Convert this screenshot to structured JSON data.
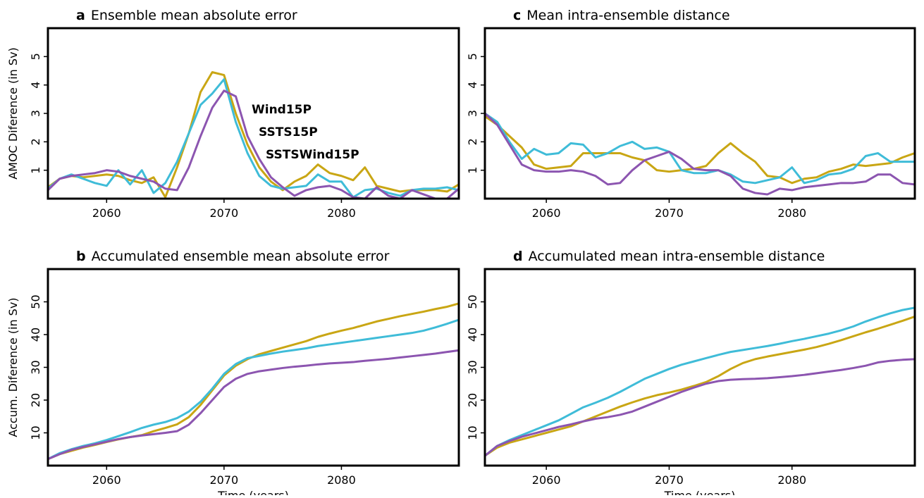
{
  "chart_data": [
    {
      "type": "line",
      "label": "a",
      "title": "Ensemble mean absolute error",
      "ylabel": "AMOC Diference (in Sv)",
      "legend": true,
      "x": [
        2055,
        2056,
        2057,
        2058,
        2059,
        2060,
        2061,
        2062,
        2063,
        2064,
        2065,
        2066,
        2067,
        2068,
        2069,
        2070,
        2071,
        2072,
        2073,
        2074,
        2075,
        2076,
        2077,
        2078,
        2079,
        2080,
        2081,
        2082,
        2083,
        2084,
        2085,
        2086,
        2087,
        2088,
        2089,
        2090
      ],
      "xlim": [
        2055,
        2090
      ],
      "xticks": [
        2060,
        2070,
        2080
      ],
      "ylim": [
        0,
        6
      ],
      "yticks": [
        1,
        2,
        3,
        4,
        5
      ],
      "series": [
        {
          "name": "Wind15P",
          "color": "#c9a614",
          "values": [
            0.4,
            0.7,
            0.8,
            0.75,
            0.8,
            0.85,
            0.8,
            0.65,
            0.55,
            0.75,
            0.05,
            1.1,
            2.3,
            3.75,
            4.45,
            4.35,
            3.0,
            1.9,
            1.1,
            0.6,
            0.3,
            0.6,
            0.8,
            1.2,
            0.9,
            0.8,
            0.65,
            1.1,
            0.45,
            0.35,
            0.25,
            0.3,
            0.3,
            0.3,
            0.25,
            0.5
          ]
        },
        {
          "name": "SSTS15P",
          "color": "#3fbcd8",
          "values": [
            0.35,
            0.7,
            0.85,
            0.7,
            0.55,
            0.45,
            1.0,
            0.5,
            1.0,
            0.2,
            0.55,
            1.3,
            2.3,
            3.3,
            3.7,
            4.2,
            2.7,
            1.6,
            0.8,
            0.45,
            0.35,
            0.4,
            0.45,
            0.85,
            0.6,
            0.6,
            0.05,
            0.3,
            0.35,
            0.2,
            0.1,
            0.3,
            0.35,
            0.35,
            0.4,
            0.3
          ]
        },
        {
          "name": "SSTSWind15P",
          "color": "#8c55b0",
          "values": [
            0.3,
            0.7,
            0.8,
            0.85,
            0.9,
            1.0,
            0.95,
            0.8,
            0.7,
            0.6,
            0.35,
            0.3,
            1.1,
            2.2,
            3.2,
            3.8,
            3.6,
            2.2,
            1.4,
            0.75,
            0.4,
            0.1,
            0.3,
            0.4,
            0.45,
            0.3,
            0.05,
            0.0,
            0.4,
            0.1,
            0.0,
            0.3,
            0.15,
            0.0,
            0.0,
            0.35
          ]
        }
      ]
    },
    {
      "type": "line",
      "label": "b",
      "title": "Accumulated ensemble mean absolute error",
      "ylabel": "Accum. Diference (in Sv)",
      "xlabel": "Time (years)",
      "x": [
        2055,
        2056,
        2057,
        2058,
        2059,
        2060,
        2061,
        2062,
        2063,
        2064,
        2065,
        2066,
        2067,
        2068,
        2069,
        2070,
        2071,
        2072,
        2073,
        2074,
        2075,
        2076,
        2077,
        2078,
        2079,
        2080,
        2081,
        2082,
        2083,
        2084,
        2085,
        2086,
        2087,
        2088,
        2089,
        2090
      ],
      "xlim": [
        2055,
        2090
      ],
      "xticks": [
        2060,
        2070,
        2080
      ],
      "ylim": [
        0,
        60
      ],
      "yticks": [
        10,
        20,
        30,
        40,
        50
      ],
      "series": [
        {
          "color": "#c9a614",
          "values": [
            2,
            3.5,
            4.5,
            5.5,
            6.3,
            7.2,
            8,
            8.7,
            9.3,
            10.5,
            11.5,
            12.6,
            14.8,
            18.5,
            23,
            27.5,
            30.5,
            32.5,
            34,
            35,
            36,
            37,
            38,
            39.3,
            40.3,
            41.2,
            42,
            43,
            44,
            44.8,
            45.6,
            46.3,
            47,
            47.8,
            48.5,
            49.5
          ]
        },
        {
          "color": "#3fbcd8",
          "values": [
            2,
            3.8,
            5,
            6,
            6.8,
            7.8,
            9,
            10.2,
            11.5,
            12.5,
            13.3,
            14.5,
            16.5,
            19.5,
            23.5,
            28,
            31,
            32.8,
            33.5,
            34.2,
            34.8,
            35.3,
            35.8,
            36.5,
            37,
            37.5,
            38,
            38.5,
            39,
            39.5,
            40,
            40.5,
            41.2,
            42.2,
            43.3,
            44.5
          ]
        },
        {
          "color": "#8c55b0",
          "values": [
            2,
            3.5,
            4.8,
            5.7,
            6.5,
            7.3,
            8.1,
            8.7,
            9.2,
            9.6,
            10,
            10.5,
            12.5,
            16,
            20,
            24,
            26.5,
            28,
            28.8,
            29.3,
            29.8,
            30.2,
            30.5,
            30.9,
            31.2,
            31.4,
            31.6,
            32,
            32.3,
            32.6,
            33,
            33.4,
            33.8,
            34.2,
            34.7,
            35.2
          ]
        }
      ]
    },
    {
      "type": "line",
      "label": "c",
      "title": "Mean intra-ensemble distance",
      "x": [
        2055,
        2056,
        2057,
        2058,
        2059,
        2060,
        2061,
        2062,
        2063,
        2064,
        2065,
        2066,
        2067,
        2068,
        2069,
        2070,
        2071,
        2072,
        2073,
        2074,
        2075,
        2076,
        2077,
        2078,
        2079,
        2080,
        2081,
        2082,
        2083,
        2084,
        2085,
        2086,
        2087,
        2088,
        2089,
        2090
      ],
      "xlim": [
        2055,
        2090
      ],
      "xticks": [
        2060,
        2070,
        2080
      ],
      "ylim": [
        0,
        6
      ],
      "yticks": [
        1,
        2,
        3,
        4,
        5
      ],
      "series": [
        {
          "color": "#c9a614",
          "values": [
            2.9,
            2.6,
            2.2,
            1.8,
            1.2,
            1.05,
            1.1,
            1.15,
            1.6,
            1.6,
            1.6,
            1.6,
            1.45,
            1.35,
            1.0,
            0.95,
            1.0,
            1.05,
            1.15,
            1.6,
            1.95,
            1.6,
            1.3,
            0.8,
            0.75,
            0.55,
            0.7,
            0.75,
            0.95,
            1.05,
            1.2,
            1.15,
            1.2,
            1.25,
            1.45,
            1.6
          ]
        },
        {
          "color": "#3fbcd8",
          "values": [
            3.0,
            2.7,
            2.0,
            1.4,
            1.75,
            1.55,
            1.6,
            1.95,
            1.9,
            1.45,
            1.6,
            1.85,
            2.0,
            1.75,
            1.8,
            1.65,
            1.0,
            0.9,
            0.9,
            1.0,
            0.85,
            0.6,
            0.55,
            0.65,
            0.75,
            1.1,
            0.55,
            0.65,
            0.85,
            0.9,
            1.05,
            1.5,
            1.6,
            1.3,
            1.3,
            1.3
          ]
        },
        {
          "color": "#8c55b0",
          "values": [
            3.0,
            2.6,
            1.9,
            1.2,
            1.0,
            0.95,
            0.95,
            1.0,
            0.95,
            0.8,
            0.5,
            0.55,
            1.0,
            1.35,
            1.5,
            1.65,
            1.4,
            1.05,
            1.0,
            1.0,
            0.8,
            0.35,
            0.2,
            0.15,
            0.35,
            0.3,
            0.4,
            0.45,
            0.5,
            0.55,
            0.55,
            0.6,
            0.85,
            0.85,
            0.55,
            0.5
          ]
        }
      ]
    },
    {
      "type": "line",
      "label": "d",
      "title": "Accumulated mean intra-ensemble distance",
      "xlabel": "Time (years)",
      "x": [
        2055,
        2056,
        2057,
        2058,
        2059,
        2060,
        2061,
        2062,
        2063,
        2064,
        2065,
        2066,
        2067,
        2068,
        2069,
        2070,
        2071,
        2072,
        2073,
        2074,
        2075,
        2076,
        2077,
        2078,
        2079,
        2080,
        2081,
        2082,
        2083,
        2084,
        2085,
        2086,
        2087,
        2088,
        2089,
        2090
      ],
      "xlim": [
        2055,
        2090
      ],
      "xticks": [
        2060,
        2070,
        2080
      ],
      "ylim": [
        0,
        60
      ],
      "yticks": [
        10,
        20,
        30,
        40,
        50
      ],
      "series": [
        {
          "color": "#c9a614",
          "values": [
            3,
            5.5,
            7,
            8,
            9,
            10,
            11,
            12,
            13.5,
            15,
            16.5,
            18,
            19.3,
            20.5,
            21.5,
            22.3,
            23.2,
            24.3,
            25.5,
            27.3,
            29.5,
            31.3,
            32.5,
            33.3,
            34,
            34.7,
            35.4,
            36.2,
            37.2,
            38.3,
            39.5,
            40.7,
            41.8,
            43,
            44.2,
            45.5
          ]
        },
        {
          "color": "#3fbcd8",
          "values": [
            3,
            6,
            7.8,
            9.3,
            10.8,
            12.3,
            13.8,
            15.8,
            17.8,
            19.2,
            20.7,
            22.5,
            24.5,
            26.5,
            28,
            29.5,
            30.8,
            31.8,
            32.8,
            33.8,
            34.7,
            35.3,
            35.9,
            36.5,
            37.2,
            38,
            38.7,
            39.5,
            40.3,
            41.3,
            42.5,
            44,
            45.3,
            46.5,
            47.5,
            48.2
          ]
        },
        {
          "color": "#8c55b0",
          "values": [
            3,
            6,
            7.5,
            8.8,
            9.8,
            10.8,
            11.8,
            12.6,
            13.5,
            14.3,
            14.8,
            15.5,
            16.5,
            18,
            19.5,
            21,
            22.5,
            23.8,
            25,
            25.8,
            26.2,
            26.4,
            26.5,
            26.7,
            27,
            27.3,
            27.7,
            28.2,
            28.7,
            29.2,
            29.8,
            30.5,
            31.5,
            32,
            32.3,
            32.5
          ]
        }
      ]
    }
  ]
}
